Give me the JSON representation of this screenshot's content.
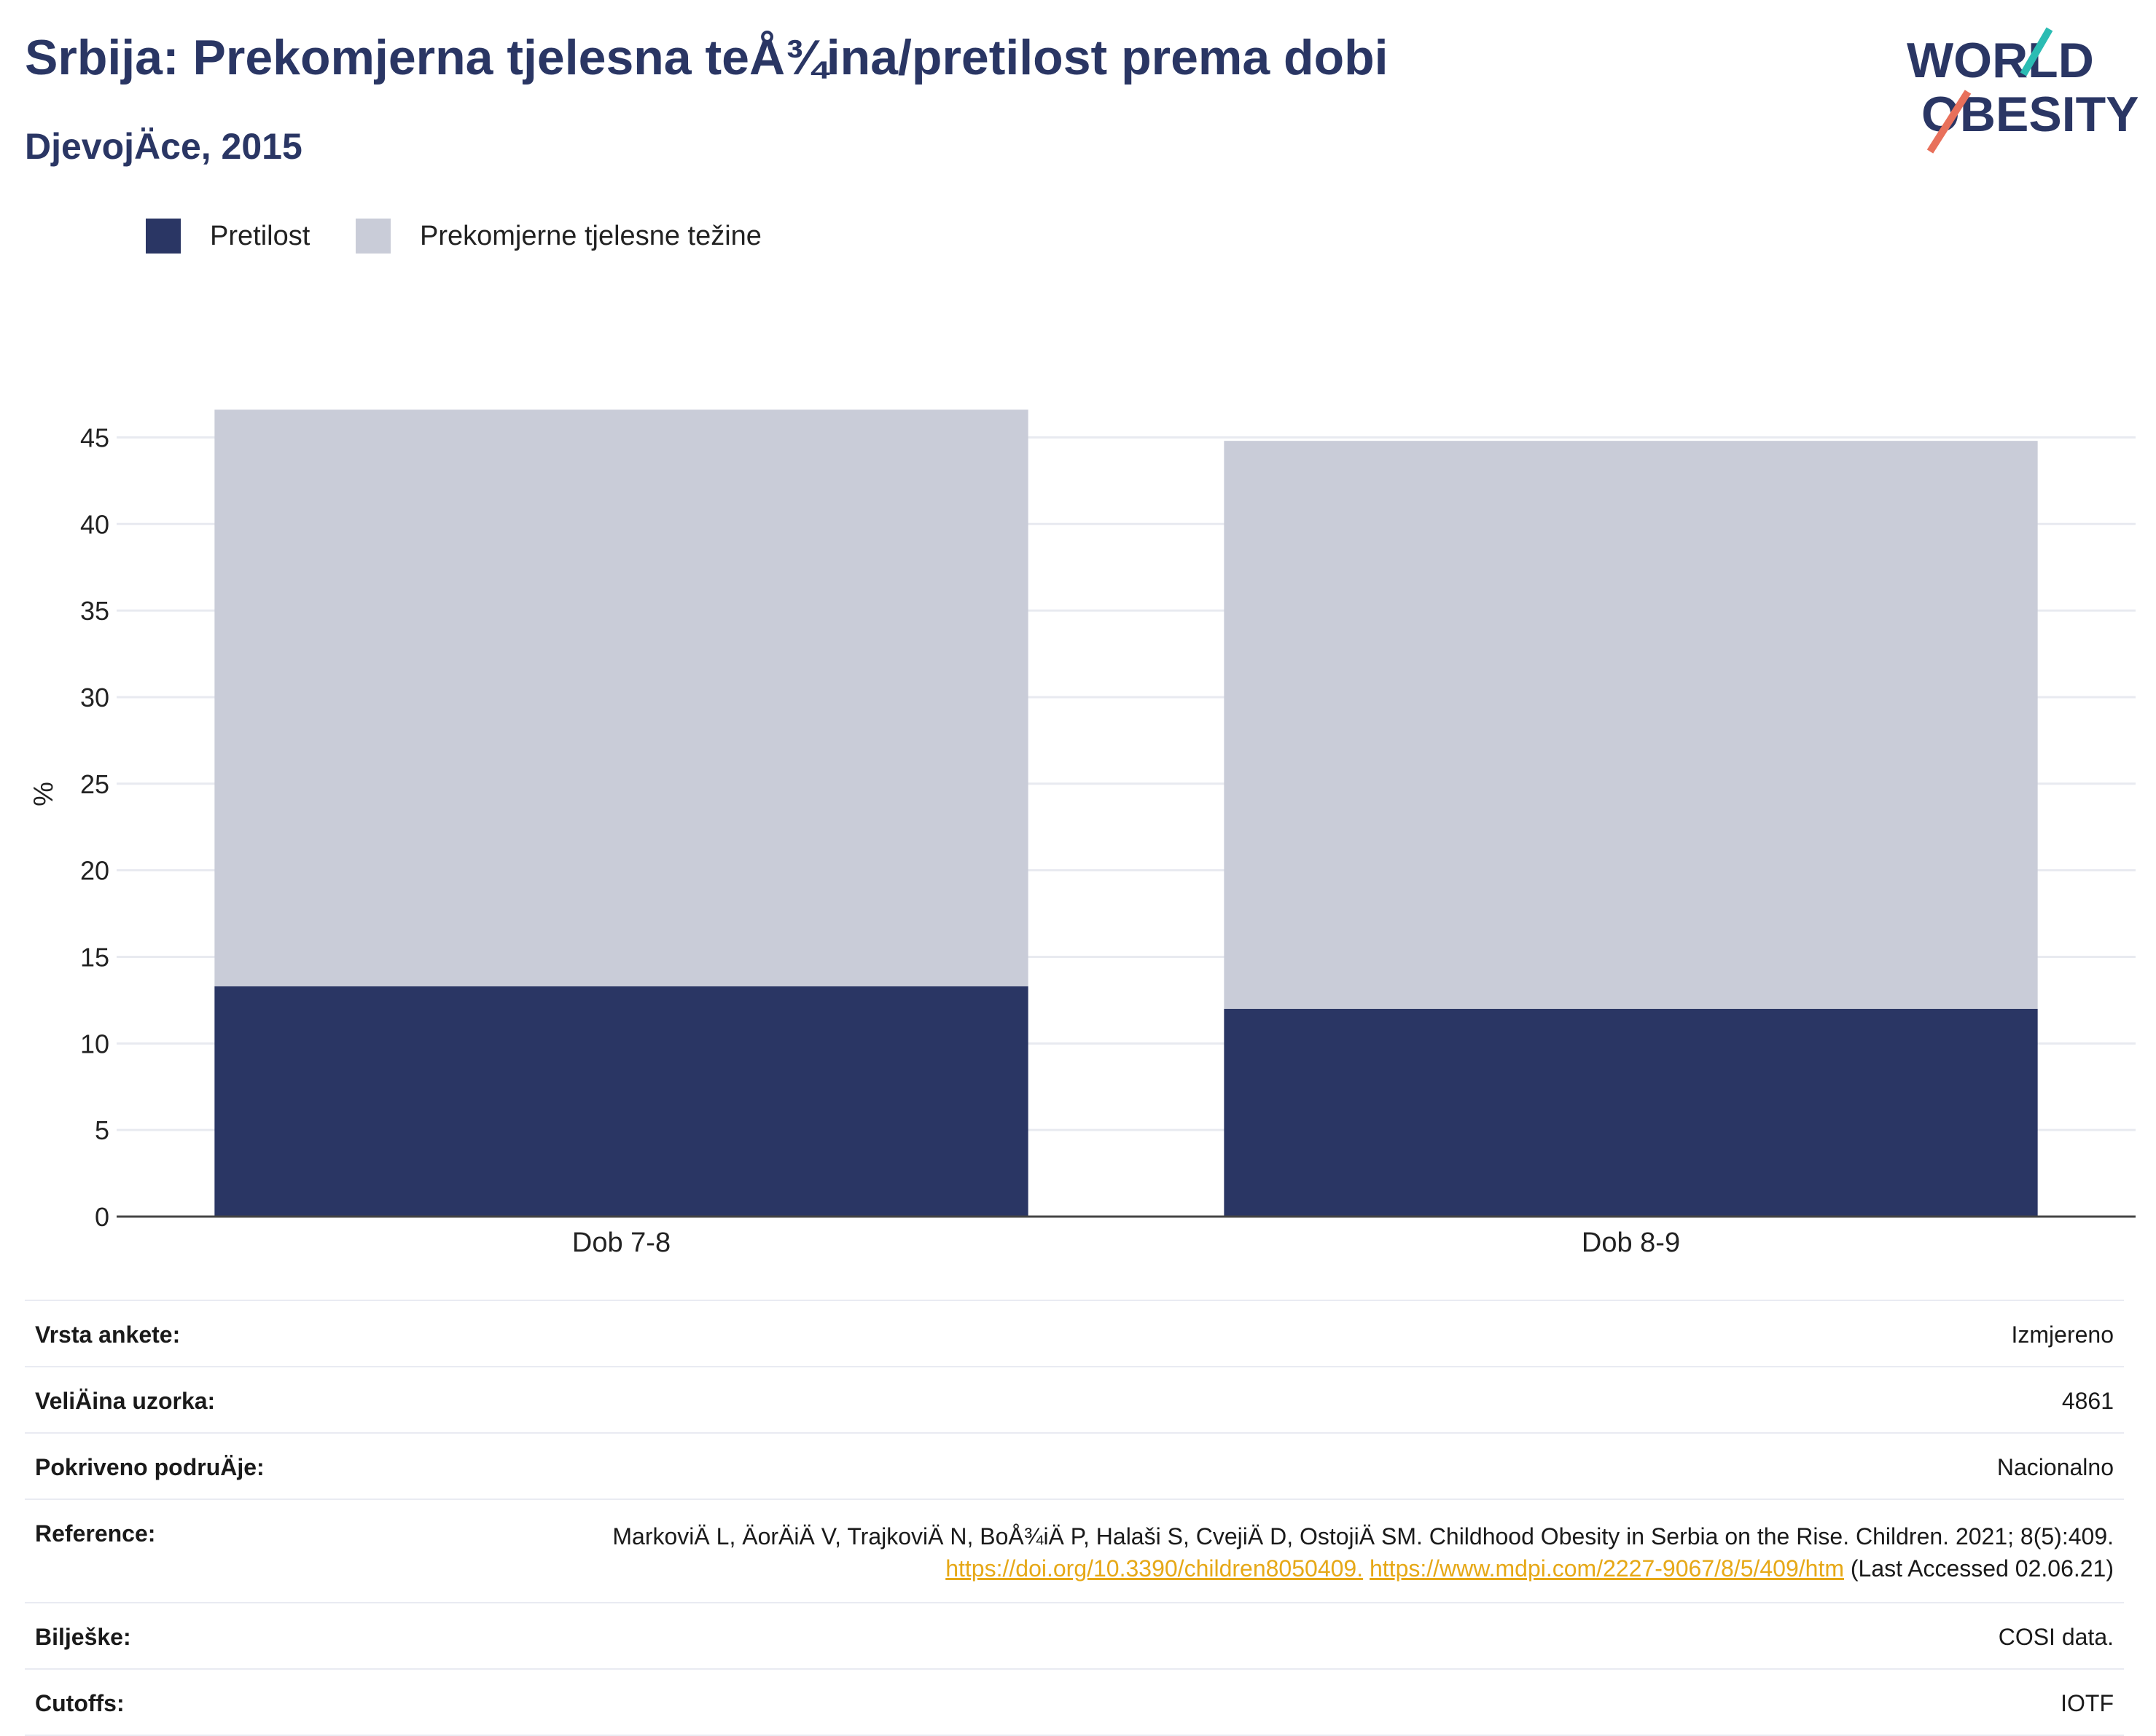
{
  "title": "Srbija: Prekomjerna tjelesna teÅ¾ina/pretilost prema dobi",
  "subtitle": "DjevojÄce, 2015",
  "logo": {
    "line1": "WORLD",
    "line2": "OBESITY"
  },
  "colors": {
    "pretilost": "#2a3664",
    "prekomjerne": "#c9ccd8",
    "title": "#2a3664",
    "link": "#e6a817"
  },
  "legend": [
    {
      "label": "Pretilost",
      "color": "#2a3664"
    },
    {
      "label": "Prekomjerne tjelesne težine",
      "color": "#c9ccd8"
    }
  ],
  "chart_data": {
    "type": "bar",
    "stacked": true,
    "categories": [
      "Dob 7-8",
      "Dob 8-9"
    ],
    "series": [
      {
        "name": "Pretilost",
        "values": [
          13.3,
          12.0
        ]
      },
      {
        "name": "Prekomjerne tjelesne težine",
        "values": [
          33.3,
          32.8
        ]
      }
    ],
    "ylabel": "%",
    "ylim": [
      0,
      46.7
    ],
    "yticks": [
      0,
      5,
      10,
      15,
      20,
      25,
      30,
      35,
      40,
      45
    ],
    "grid": true
  },
  "meta": {
    "survey_type_label": "Vrsta ankete:",
    "survey_type": "Izmjereno",
    "sample_size_label": "VeliÄina uzorka:",
    "sample_size": "4861",
    "area_label": "Pokriveno podruÄje:",
    "area": "Nacionalno",
    "reference_label": "Reference:",
    "reference_text": "MarkoviÄ L, ÄorÄiÄ V, TrajkoviÄ N, BoÅ¾iÄ P, Halaši S, CvejiÄ D, OstojiÄ SM. Childhood Obesity in Serbia on the Rise. Children. 2021; 8(5):409.",
    "reference_link1": "https://doi.org/10.3390/children8050409.",
    "reference_link2": "https://www.mdpi.com/2227-9067/8/5/409/htm",
    "reference_suffix": "(Last Accessed 02.06.21)",
    "notes_label": "Bilješke:",
    "notes": "COSI data.",
    "cutoffs_label": "Cutoffs:",
    "cutoffs": "IOTF"
  }
}
